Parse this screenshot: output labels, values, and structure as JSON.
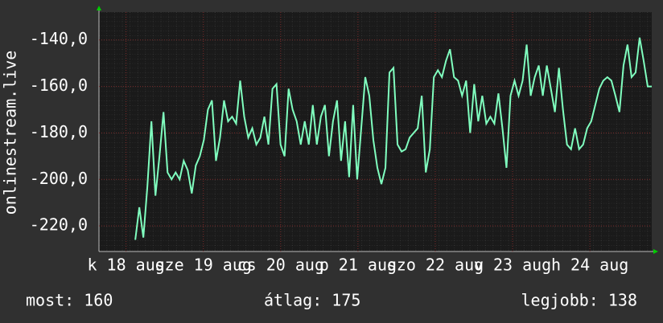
{
  "chart_data": {
    "type": "line",
    "y_label": "onlinestream.live",
    "xlim": [
      17.65,
      24.8
    ],
    "xticks": [
      {
        "value": 18,
        "label": "k 18 aug"
      },
      {
        "value": 19,
        "label": "sze 19 aug"
      },
      {
        "value": 20,
        "label": "cs 20 aug"
      },
      {
        "value": 21,
        "label": "p 21 aug"
      },
      {
        "value": 22,
        "label": "szo 22 aug"
      },
      {
        "value": 23,
        "label": "v 23 aug"
      },
      {
        "value": 24,
        "label": "h 24 aug"
      }
    ],
    "ylim": [
      -231,
      -128
    ],
    "yticks": [
      {
        "value": -220,
        "label": "-220,0"
      },
      {
        "value": -200,
        "label": "-200,0"
      },
      {
        "value": -180,
        "label": "-180,0"
      },
      {
        "value": -160,
        "label": "-160,0"
      },
      {
        "value": -140,
        "label": "-140,0"
      }
    ],
    "grid": true,
    "series": [
      {
        "color": "#80ffbf",
        "values": [
          null,
          null,
          null,
          null,
          null,
          null,
          null,
          null,
          null,
          -226,
          -212,
          -225,
          -203,
          -175,
          -207,
          -190,
          -171,
          -197,
          -200,
          -197,
          -200,
          -192,
          -196,
          -206,
          -194,
          -190,
          -183,
          -170,
          -166,
          -192,
          -182,
          -166,
          -175,
          -173,
          -176,
          -157.5,
          -173,
          -182,
          -178,
          -185,
          -182,
          -173,
          -185,
          -161,
          -159,
          -185,
          -190,
          -161,
          -170,
          -175,
          -185,
          -175,
          -185,
          -168,
          -185,
          -173,
          -168,
          -190,
          -175,
          -166,
          -192,
          -175,
          -199,
          -168,
          -200,
          -178,
          -156,
          -164,
          -183,
          -195,
          -202,
          -195,
          -154,
          -152,
          -185,
          -188,
          -187,
          -182,
          -180,
          -178,
          -164,
          -197,
          -187,
          -156,
          -153,
          -156,
          -149,
          -144,
          -156,
          -157.5,
          -164,
          -157.5,
          -180,
          -159,
          -175,
          -164,
          -176,
          -173,
          -176,
          -163,
          -178,
          -195,
          -164,
          -157.5,
          -164,
          -157.5,
          -142,
          -164,
          -156,
          -151,
          -164,
          -151,
          -161,
          -171,
          -152,
          -170,
          -185,
          -187,
          -178,
          -187,
          -185,
          -178,
          -175,
          -168,
          -161,
          -157.5,
          -156,
          -157.5,
          -164,
          -171,
          -151,
          -142,
          -156,
          -154,
          -139,
          -149,
          -160,
          -160
        ]
      }
    ],
    "footer": {
      "current": "most: 160",
      "average": "átlag: 175",
      "best": "legjobb: 138"
    }
  }
}
